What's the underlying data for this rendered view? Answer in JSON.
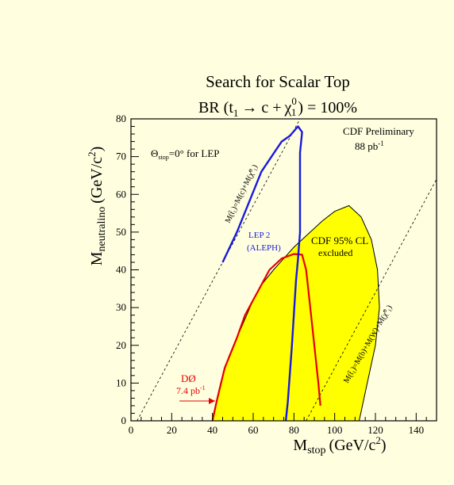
{
  "chart_data": {
    "type": "area",
    "title": "Search for Scalar Top",
    "subtitle": {
      "prefix": "BR (",
      "t": "t",
      "t_sub": "1",
      "arrow": "→ c +",
      "chi": "χ",
      "chi_sup": "0",
      "chi_sub": "1",
      "suffix": ") = 100%"
    },
    "xlabel": {
      "main": "M",
      "sub": "stop",
      "unit": "(GeV/c",
      "unit_sup": "2",
      "close": ")"
    },
    "ylabel": {
      "main": "M",
      "sub": "neutralino",
      "unit": "(GeV/c",
      "unit_sup": "2",
      "close": ")"
    },
    "xlim": [
      0,
      150
    ],
    "ylim": [
      0,
      80
    ],
    "xticks": [
      0,
      20,
      40,
      60,
      80,
      100,
      120,
      140
    ],
    "yticks": [
      0,
      10,
      20,
      30,
      40,
      50,
      60,
      70,
      80
    ],
    "grid": false,
    "colors": {
      "cdf_fill": "#ffff00",
      "d0": "#e60000",
      "lep": "#1a1add",
      "axis": "#000000",
      "background": "#ffffe0"
    },
    "series": [
      {
        "name": "CDF 95% CL excluded",
        "kind": "filled-region",
        "points": [
          [
            40,
            0
          ],
          [
            41,
            3
          ],
          [
            44,
            10
          ],
          [
            48,
            17
          ],
          [
            52,
            22
          ],
          [
            56,
            27
          ],
          [
            60,
            32
          ],
          [
            64,
            36
          ],
          [
            70,
            40
          ],
          [
            75,
            43
          ],
          [
            80,
            46
          ],
          [
            86,
            49
          ],
          [
            94,
            53
          ],
          [
            100,
            55.5
          ],
          [
            107,
            57
          ],
          [
            113,
            54
          ],
          [
            118,
            48
          ],
          [
            121,
            40
          ],
          [
            122,
            30
          ],
          [
            120,
            20
          ],
          [
            116,
            10
          ],
          [
            112,
            0
          ]
        ]
      },
      {
        "name": "D0 7.4 pb-1",
        "kind": "line",
        "points": [
          [
            40,
            0
          ],
          [
            42,
            5
          ],
          [
            46,
            14
          ],
          [
            52,
            22
          ],
          [
            56,
            28
          ],
          [
            62,
            34
          ],
          [
            68,
            40
          ],
          [
            74,
            43
          ],
          [
            80,
            44.2
          ],
          [
            84,
            44
          ],
          [
            86,
            40
          ],
          [
            88,
            30
          ],
          [
            90,
            20
          ],
          [
            92,
            10
          ],
          [
            93,
            4
          ]
        ]
      },
      {
        "name": "LEP 2 (ALEPH)",
        "kind": "line",
        "points": [
          [
            45,
            42
          ],
          [
            52,
            50
          ],
          [
            58,
            58
          ],
          [
            64,
            66
          ],
          [
            69,
            70
          ],
          [
            74,
            74
          ],
          [
            78,
            75.5
          ],
          [
            82,
            78
          ],
          [
            84,
            76.5
          ],
          [
            83,
            71
          ],
          [
            83,
            62
          ],
          [
            83,
            50
          ],
          [
            82,
            43
          ],
          [
            81,
            37
          ],
          [
            79,
            20
          ],
          [
            77,
            5
          ],
          [
            76,
            0
          ]
        ]
      }
    ],
    "reference_lines": [
      {
        "name": "M(t1)=M(c)+M(χ1⁰)",
        "points": [
          [
            3,
            0
          ],
          [
            83,
            80
          ]
        ]
      },
      {
        "name": "M(t1)=M(b)+M(W)+M(χ1⁰)",
        "points": [
          [
            86,
            0
          ],
          [
            150,
            64
          ]
        ]
      }
    ],
    "annotations": {
      "cdf_prelim": "CDF Preliminary",
      "cdf_lumi": "88 pb",
      "cdf_lumi_sup": "-1",
      "theta": {
        "sym": "Θ",
        "sub": "stop",
        "text": "=0° for LEP"
      },
      "lep_line1": "LEP 2",
      "lep_line2": "(ALEPH)",
      "cdf_excl_line1": "CDF 95% CL",
      "cdf_excl_line2": "excluded",
      "d0_line1": "DØ",
      "d0_line2": "7.4 pb",
      "d0_line2_sup": "-1",
      "diag1": "M(t̃₁)=M(c)+M(χ̃⁰₁)",
      "diag2": "M(t̃₁)=M(b)+M(W)+M(χ̃⁰₁)"
    }
  }
}
